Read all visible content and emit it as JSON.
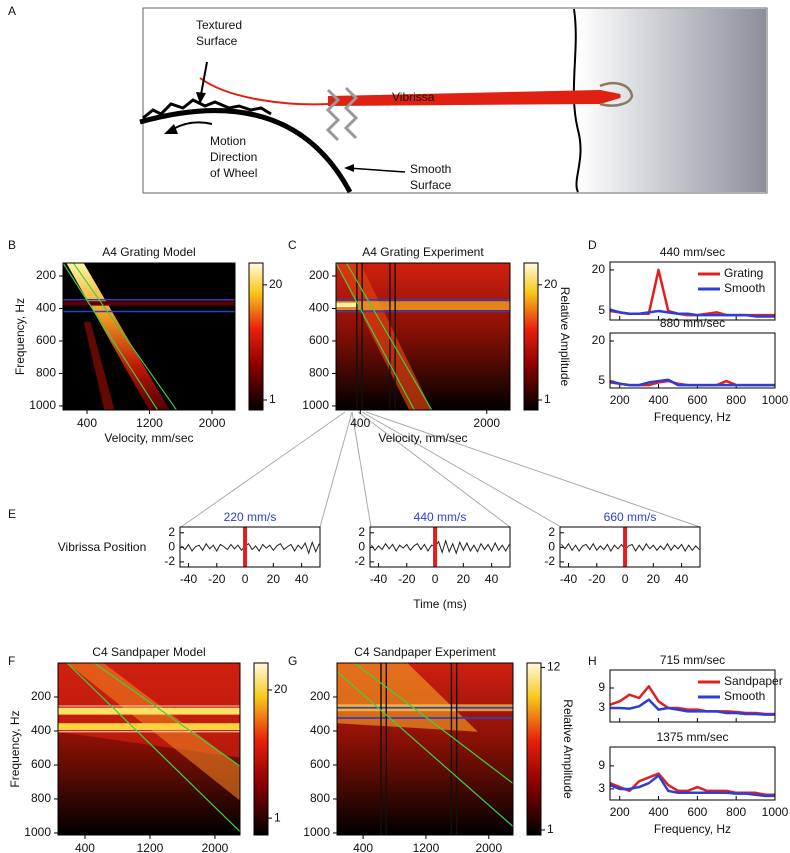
{
  "panel_a": {
    "letter": "A",
    "textured_surface": [
      "Textured",
      "Surface"
    ],
    "motion": [
      "Motion",
      "Direction",
      "of Wheel"
    ],
    "smooth_surface": [
      "Smooth",
      "Surface"
    ],
    "vibrissa": "Vibrissa"
  },
  "heatmaps": [
    {
      "letter": "B",
      "title": "A4 Grating Model",
      "ylabel": "Frequency, Hz",
      "xlabel": "Velocity, mm/sec",
      "ylim": [
        120,
        1025
      ],
      "yticks": [
        200,
        400,
        600,
        800,
        1000
      ],
      "xlim": [
        93,
        2294
      ],
      "xticks": [
        400,
        1200,
        2000
      ],
      "cbar_lim": [
        -0.65,
        23.6
      ],
      "cbar_ticks": [
        20,
        1
      ]
    },
    {
      "letter": "C",
      "title": "A4 Grating Experiment",
      "xlabel": "Velocity, mm/sec",
      "ylim": [
        120,
        1025
      ],
      "yticks": [
        200,
        400,
        600,
        800,
        1000
      ],
      "xlim": [
        93,
        2294
      ],
      "xticks": [
        400,
        2000
      ],
      "cbar_lim": [
        -0.65,
        23.6
      ],
      "cbar_ticks": [
        20,
        1
      ],
      "cbar_label": "Relative Amplitude"
    },
    {
      "letter": "F",
      "title": "C4 Sandpaper Model",
      "ylabel": "Frequency, Hz",
      "xlabel": "Velocity, mm/sec",
      "ylim": [
        0,
        1012
      ],
      "yticks": [
        200,
        400,
        600,
        800,
        1000
      ],
      "xlim": [
        68,
        2308
      ],
      "xticks": [
        400,
        1200,
        2000
      ],
      "cbar_lim": [
        -1.5,
        24
      ],
      "cbar_ticks": [
        20,
        1
      ]
    },
    {
      "letter": "G",
      "title": "C4 Sandpaper Experiment",
      "xlabel": "Velocity, mm/sec",
      "ylim": [
        0,
        1012
      ],
      "yticks": [
        200,
        400,
        600,
        800,
        1000
      ],
      "xlim": [
        68,
        2308
      ],
      "xticks": [
        400,
        1200,
        2000
      ],
      "cbar_lim": [
        0.66,
        12.3
      ],
      "cbar_ticks": [
        12,
        1
      ],
      "cbar_label": "Relative Amplitude"
    }
  ],
  "spectra": [
    {
      "letter": "D",
      "xlabel": "Frequency, Hz",
      "x": [
        150,
        200,
        250,
        300,
        350,
        400,
        450,
        500,
        550,
        600,
        650,
        700,
        750,
        800,
        850,
        900,
        950,
        1000
      ],
      "xlim": [
        150,
        1000
      ],
      "xticks": [
        200,
        400,
        600,
        800,
        1000
      ],
      "legend": [
        {
          "name": "Grating",
          "color": "#e02020"
        },
        {
          "name": "Smooth",
          "color": "#2b3fd6"
        }
      ],
      "plots": [
        {
          "title": "440 mm/sec",
          "ylim": [
            1.7,
            22.9
          ],
          "yticks": [
            20,
            5
          ],
          "series": [
            [
              5,
              4.5,
              4,
              4,
              4,
              20,
              5,
              4,
              3.5,
              3.5,
              4,
              4.5,
              3.5,
              3.5,
              3.5,
              3.5,
              3.5,
              3.5
            ],
            [
              5.5,
              4.5,
              4,
              4,
              4.5,
              5,
              4.5,
              4,
              4,
              3.5,
              3.5,
              3.5,
              3.5,
              3.5,
              3.5,
              3,
              3,
              3
            ]
          ]
        },
        {
          "title": "880 mm/sec",
          "ylim": [
            2.4,
            23
          ],
          "yticks": [
            20,
            5
          ],
          "series": [
            [
              4.5,
              4,
              3.5,
              3.5,
              3.5,
              4.5,
              5,
              4,
              3.5,
              3.5,
              3.5,
              3.5,
              5,
              3.5,
              3.5,
              3.5,
              3.5,
              3.5
            ],
            [
              5,
              4,
              3.5,
              3.5,
              4.5,
              5,
              5.5,
              3.5,
              3.5,
              3.5,
              3.5,
              3.5,
              3.5,
              3.5,
              3.5,
              3.5,
              3.5,
              3.5
            ]
          ]
        }
      ]
    },
    {
      "letter": "H",
      "xlabel": "Frequency, Hz",
      "x": [
        150,
        200,
        250,
        300,
        350,
        400,
        450,
        500,
        550,
        600,
        650,
        700,
        750,
        800,
        850,
        900,
        950,
        1000
      ],
      "xlim": [
        150,
        1000
      ],
      "xticks": [
        200,
        400,
        600,
        800,
        1000
      ],
      "legend": [
        {
          "name": "Sandpaper",
          "color": "#e02020"
        },
        {
          "name": "Smooth",
          "color": "#2b3fd6"
        }
      ],
      "plots": [
        {
          "title": "715 mm/sec",
          "ylim": [
            -1.2,
            14.4
          ],
          "yticks": [
            9,
            3
          ],
          "series": [
            [
              4,
              5,
              7,
              6,
              9.5,
              5,
              3,
              3,
              2.5,
              2.5,
              2,
              2,
              2,
              1.8,
              1.5,
              1.5,
              1.2,
              1.2
            ],
            [
              3,
              3,
              2.8,
              3.5,
              5.5,
              2.5,
              3,
              2.5,
              2,
              2,
              2,
              2,
              1.5,
              1.5,
              1.2,
              1.2,
              1,
              1
            ]
          ]
        },
        {
          "title": "1375 mm/sec",
          "ylim": [
            0.13,
            13.9
          ],
          "yticks": [
            9,
            3
          ],
          "series": [
            [
              4.5,
              3.5,
              2.5,
              5,
              6,
              7,
              4,
              2.5,
              2.5,
              3.5,
              2.5,
              2.5,
              2.5,
              2,
              2,
              2,
              1.5,
              1.5
            ],
            [
              4,
              3,
              3,
              3.5,
              4.5,
              6.5,
              2.5,
              2,
              2,
              2,
              2,
              2,
              2,
              1.8,
              1.8,
              1.5,
              1.2,
              1.2
            ]
          ]
        }
      ]
    }
  ],
  "traces": {
    "letter": "E",
    "ylabel": "Vibrissa Position",
    "xlabel": "Time (ms)",
    "xlim": [
      -46,
      53
    ],
    "ylim": [
      -2.7,
      2.8
    ],
    "xticks": [
      -40,
      -20,
      0,
      20,
      40
    ],
    "yticks": [
      2,
      0,
      -2
    ],
    "event_time": 0,
    "event_color": "#e02020",
    "title_color": "#2b3fd6",
    "t": [
      -45,
      -42.5,
      -40,
      -37.5,
      -35,
      -32.5,
      -30,
      -27.5,
      -25,
      -22.5,
      -20,
      -17.5,
      -15,
      -12.5,
      -10,
      -7.5,
      -5,
      -2.5,
      0,
      2.5,
      5,
      7.5,
      10,
      12.5,
      15,
      17.5,
      20,
      22.5,
      25,
      27.5,
      30,
      32.5,
      35,
      37.5,
      40,
      42.5,
      45,
      47.5,
      50,
      52.5
    ],
    "plots": [
      {
        "title": "220 mm/s",
        "values": [
          0.2,
          -0.3,
          0.4,
          -0.5,
          0.1,
          0.3,
          -0.4,
          0.5,
          -0.2,
          0.3,
          -0.5,
          0.4,
          0.1,
          -0.3,
          0.4,
          -0.2,
          0.3,
          -0.4,
          0.2,
          0.5,
          -0.3,
          0.2,
          -0.5,
          0.4,
          -0.1,
          0.3,
          -0.4,
          0.2,
          0.5,
          -0.3,
          0.1,
          0.4,
          -0.5,
          0.3,
          -0.2,
          0.6,
          -0.8,
          0.7,
          -0.6,
          0.5
        ]
      },
      {
        "title": "440 mm/s",
        "values": [
          0.3,
          -0.4,
          0.2,
          -0.3,
          0.5,
          -0.2,
          0.4,
          -0.5,
          0.3,
          -0.1,
          0.4,
          -0.4,
          0.2,
          0.5,
          -0.3,
          0.4,
          -0.5,
          0.3,
          0.1,
          0.8,
          -0.7,
          0.9,
          -0.6,
          0.5,
          -0.8,
          0.7,
          -0.4,
          0.6,
          -0.5,
          0.3,
          -0.6,
          0.5,
          -0.3,
          0.4,
          -0.5,
          0.6,
          -0.4,
          0.3,
          -0.5,
          0.4
        ]
      },
      {
        "title": "660 mm/s",
        "values": [
          0.4,
          -0.2,
          0.5,
          -0.4,
          0.3,
          -0.5,
          0.2,
          0.4,
          -0.3,
          0.5,
          -0.4,
          0.2,
          -0.3,
          0.4,
          -0.5,
          0.3,
          -0.2,
          0.4,
          -0.3,
          0.2,
          0.4,
          -0.5,
          0.3,
          -0.4,
          0.5,
          -0.2,
          0.3,
          -0.4,
          0.2,
          -0.3,
          0.5,
          -0.4,
          0.3,
          -0.2,
          0.4,
          -0.5,
          0.3,
          -0.4,
          0.2,
          -0.3
        ]
      }
    ]
  }
}
